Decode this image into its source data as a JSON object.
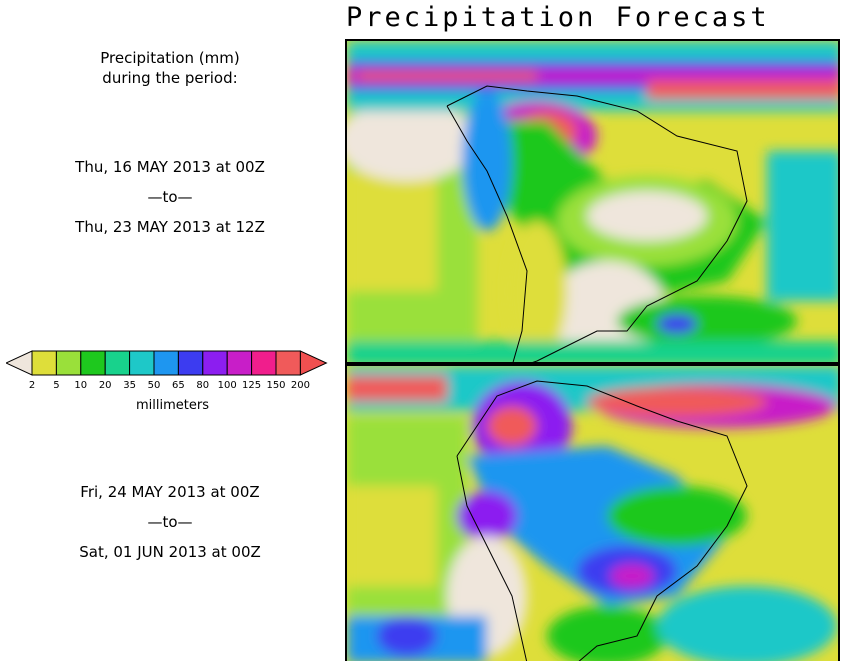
{
  "title": "Precipitation Forecast",
  "subtitle_line1": "Precipitation (mm)",
  "subtitle_line2": "during the period:",
  "period1": {
    "start": "Thu, 16 MAY 2013 at 00Z",
    "sep": "—to—",
    "end": "Thu, 23 MAY 2013 at 12Z"
  },
  "period2": {
    "start": "Fri, 24 MAY 2013 at 00Z",
    "sep": "—to—",
    "end": "Sat, 01 JUN 2013 at 00Z"
  },
  "colorbar": {
    "ticks": [
      "2",
      "5",
      "10",
      "20",
      "35",
      "50",
      "65",
      "80",
      "100",
      "125",
      "150",
      "200"
    ],
    "units": "millimeters",
    "colors": [
      "#efe6dc",
      "#dede3a",
      "#9ae03a",
      "#1ec81e",
      "#18d28c",
      "#1ec8c8",
      "#1e96f0",
      "#3c3cf0",
      "#8c1ef0",
      "#c81ec8",
      "#f01e8c",
      "#f05a5a",
      "#f05050"
    ]
  }
}
